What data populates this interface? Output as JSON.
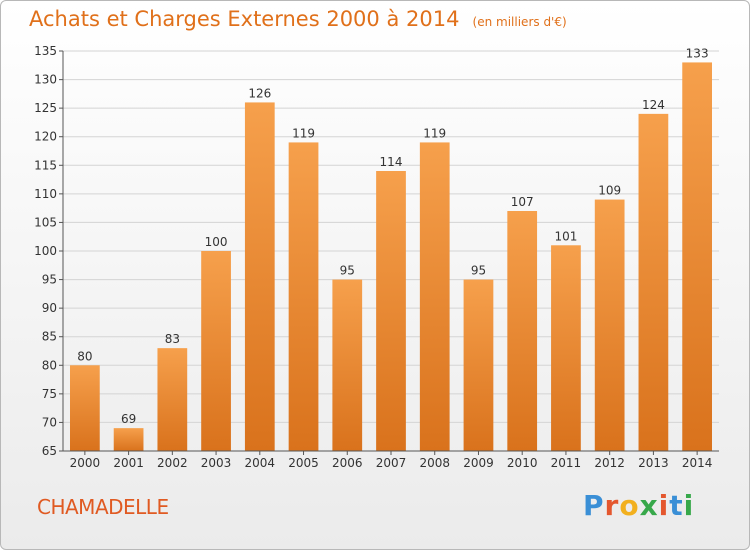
{
  "title": "Achats et Charges Externes 2000 à 2014",
  "subtitle": "(en milliers d'€)",
  "commune": "CHAMADELLE",
  "logo": {
    "text": "Proxiti",
    "letter_colors": [
      "#3a8fd6",
      "#e4572e",
      "#f2b01e",
      "#37a84a",
      "#e4572e",
      "#3a8fd6",
      "#37a84a"
    ]
  },
  "colors": {
    "bar_top": "#f6a04c",
    "bar_bottom": "#d9721c",
    "title": "#e0701a",
    "grid": "#d4d4d4",
    "axis": "#555555"
  },
  "chart_data": {
    "type": "bar",
    "title": "Achats et Charges Externes 2000 à 2014",
    "subtitle": "(en milliers d'€)",
    "categories": [
      "2000",
      "2001",
      "2002",
      "2003",
      "2004",
      "2005",
      "2006",
      "2007",
      "2008",
      "2009",
      "2010",
      "2011",
      "2012",
      "2013",
      "2014"
    ],
    "values": [
      80,
      69,
      83,
      100,
      126,
      119,
      95,
      114,
      119,
      95,
      107,
      101,
      109,
      124,
      133
    ],
    "ylim": [
      65,
      135
    ],
    "yticks": [
      65,
      70,
      75,
      80,
      85,
      90,
      95,
      100,
      105,
      110,
      115,
      120,
      125,
      130,
      135
    ],
    "data_labels": true,
    "grid": true,
    "legend": "none"
  }
}
